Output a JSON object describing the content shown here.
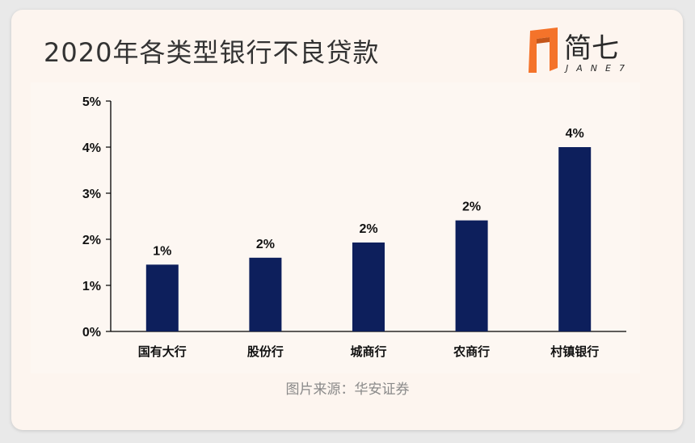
{
  "title": "2020年各类型银行不良贷款",
  "logo": {
    "name": "简七",
    "sub": "JANE7",
    "icon": "jane7-logo-icon",
    "accent": "#f4732a"
  },
  "caption": "图片来源：华安证券",
  "colors": {
    "bar": "#0d1f5c",
    "axis": "#000000",
    "text": "#111111"
  },
  "chart_data": {
    "type": "bar",
    "categories": [
      "国有大行",
      "股份行",
      "城商行",
      "农商行",
      "村镇银行"
    ],
    "values": [
      1.45,
      1.6,
      1.93,
      2.41,
      4.0
    ],
    "data_labels": [
      "1%",
      "2%",
      "2%",
      "2%",
      "4%"
    ],
    "ylim": [
      0,
      5
    ],
    "yticks": [
      "0%",
      "1%",
      "2%",
      "3%",
      "4%",
      "5%"
    ],
    "xlabel": "",
    "ylabel": "",
    "grid": false,
    "legend": "none"
  }
}
